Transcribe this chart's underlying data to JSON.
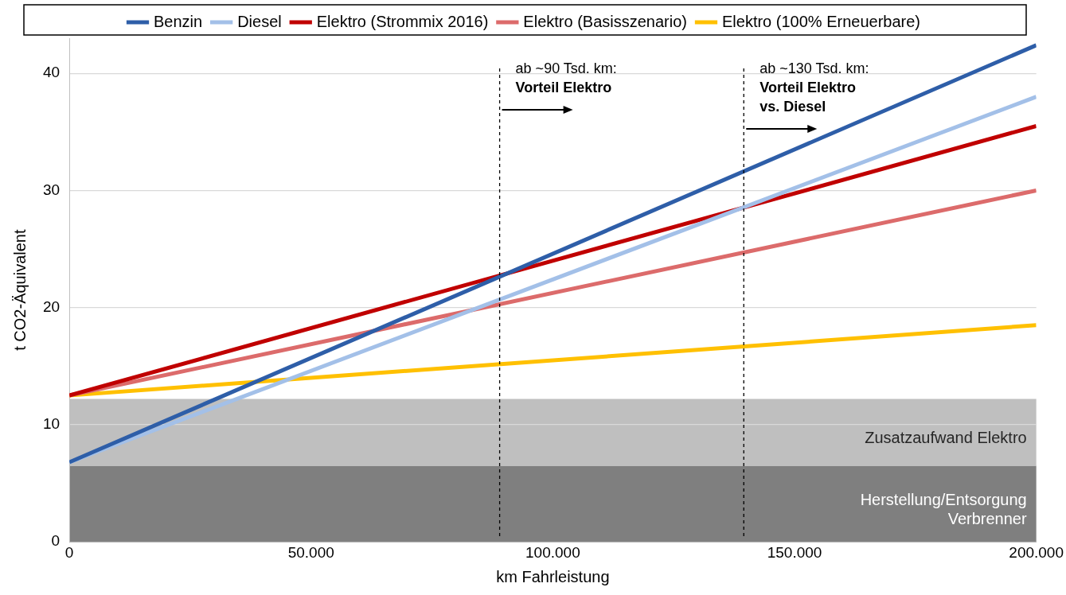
{
  "chart_data": {
    "type": "line",
    "xlabel": "km Fahrleistung",
    "ylabel": "t CO2-Äquivalent",
    "xlim": [
      0,
      200000
    ],
    "ylim": [
      0,
      43
    ],
    "xticks": [
      {
        "value": 0,
        "label": "0"
      },
      {
        "value": 50000,
        "label": "50.000"
      },
      {
        "value": 100000,
        "label": "100.000"
      },
      {
        "value": 150000,
        "label": "150.000"
      },
      {
        "value": 200000,
        "label": "200.000"
      }
    ],
    "yticks": [
      0,
      10,
      20,
      30,
      40
    ],
    "x": [
      0,
      200000
    ],
    "series": [
      {
        "name": "Benzin",
        "color": "#2e5ea8",
        "values": [
          6.8,
          42.4
        ]
      },
      {
        "name": "Diesel",
        "color": "#a3c0e8",
        "values": [
          6.8,
          38.0
        ]
      },
      {
        "name": "Elektro (Strommix 2016)",
        "color": "#c00000",
        "values": [
          12.5,
          35.5
        ]
      },
      {
        "name": "Elektro (Basisszenario)",
        "color": "#dc6b6b",
        "values": [
          12.5,
          30.0
        ]
      },
      {
        "name": "Elektro (100% Erneuerbare)",
        "color": "#ffc000",
        "values": [
          12.5,
          18.5
        ]
      }
    ],
    "bands": [
      {
        "axis": "y",
        "from": 0,
        "to": 6.5,
        "label": "Herstellung/Entsorgung\nVerbrenner",
        "color": "#7f7f7f"
      },
      {
        "axis": "y",
        "from": 6.5,
        "to": 12.2,
        "label": "Zusatzaufwand Elektro",
        "color": "#bfbfbf"
      }
    ],
    "ref_lines": [
      {
        "axis": "x",
        "value": 89000,
        "label": "ab ~90 Tsd. km:\nVorteil Elektro",
        "color": "#000000",
        "line_style": "dashed"
      },
      {
        "axis": "x",
        "value": 139500,
        "label": "ab ~130 Tsd. km:\nVorteil Elektro\nvs. Diesel",
        "color": "#000000",
        "line_style": "dashed"
      }
    ],
    "grid": "y",
    "legend": "top",
    "marker": "none",
    "line_style": "solid"
  }
}
